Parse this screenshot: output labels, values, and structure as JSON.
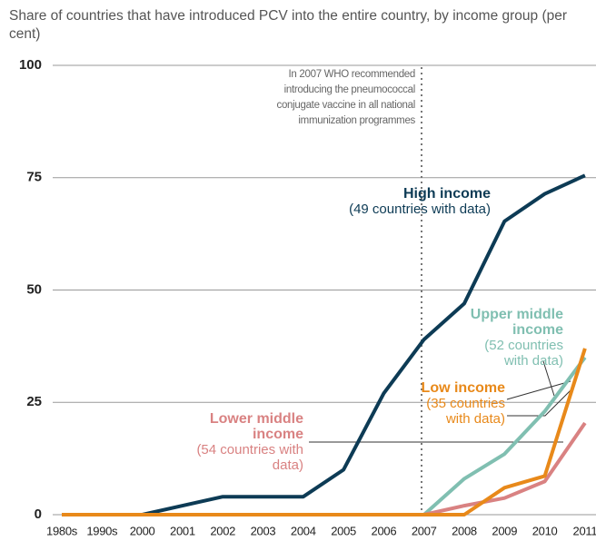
{
  "chart_data": {
    "type": "line",
    "title": "Share of countries that have introduced PCV into the entire country, by income group (per cent)",
    "annotation": "In 2007 WHO recommended introducing the pneumococcal conjugate vaccine in all national immunization programmes",
    "categories": [
      "1980s",
      "1990s",
      "2000",
      "2001",
      "2002",
      "2003",
      "2004",
      "2005",
      "2006",
      "2007",
      "2008",
      "2009",
      "2010",
      "2011"
    ],
    "series": [
      {
        "name": "High income",
        "note": "(49 countries with data)",
        "color": "#0d3b55",
        "values": [
          0,
          0,
          0,
          2,
          4,
          4,
          4,
          10,
          27,
          39,
          47,
          65.3,
          71.4,
          75.5
        ]
      },
      {
        "name": "Upper middle income",
        "note": "(52 countries with data)",
        "color": "#80bfb1",
        "values": [
          0,
          0,
          0,
          0,
          0,
          0,
          0,
          0,
          0,
          0,
          8,
          13.5,
          23,
          35
        ]
      },
      {
        "name": "Lower middle income",
        "note": "(54 countries with data)",
        "color": "#d98282",
        "values": [
          0,
          0,
          0,
          0,
          0,
          0,
          0,
          0,
          0,
          0,
          2,
          3.7,
          7.4,
          20.4
        ]
      },
      {
        "name": "Low income",
        "note": "(35 countries with data)",
        "color": "#e8891a",
        "values": [
          0,
          0,
          0,
          0,
          0,
          0,
          0,
          0,
          0,
          0,
          0,
          6,
          8.6,
          37
        ]
      }
    ],
    "ylim": [
      0,
      100
    ],
    "yticks": [
      0,
      25,
      50,
      75,
      100
    ],
    "grid": true
  }
}
